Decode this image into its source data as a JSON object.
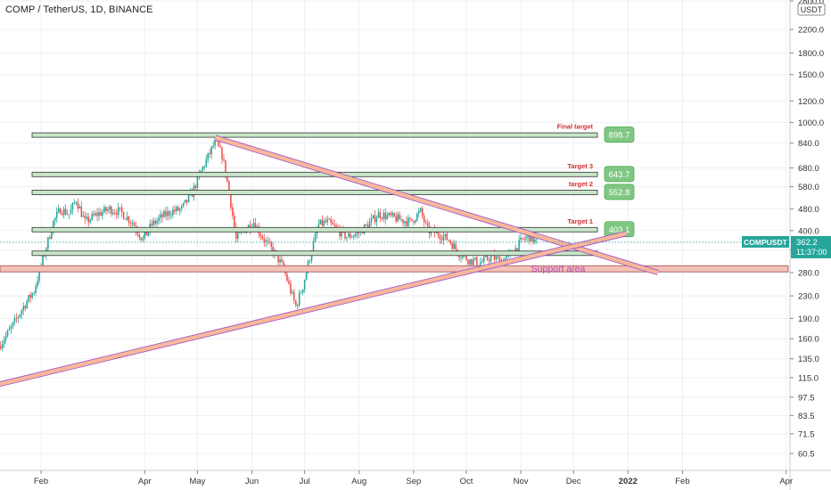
{
  "header": {
    "title": "COMP / TetherUS, 1D, BINANCE"
  },
  "currency_badge": "USDT",
  "price_tag": {
    "symbol": "COMPUSDT",
    "price": "362.2",
    "countdown": "11:37:00"
  },
  "colors": {
    "background": "#ffffff",
    "up_candle": "#26a69a",
    "down_candle": "#ef5350",
    "level_fill": "#c8e6c9",
    "level_border": "#333333",
    "label_green": "#81c784",
    "trend_fill": "#f7b89a",
    "trend_border": "#9c4dcc",
    "support_fill": "#f4c1b8",
    "support_text": "#b04ab0",
    "target_text": "#d32f2f",
    "price_tag": "#26a69a"
  },
  "chart_data": {
    "type": "candlestick",
    "title": "COMP / TetherUS, 1D, BINANCE",
    "y_scale": "log",
    "ylim": [
      52,
      2900
    ],
    "y_ticks": [
      "2800.0",
      "2200.0",
      "1800.0",
      "1500.0",
      "1200.0",
      "1000.0",
      "840.0",
      "680.0",
      "580.0",
      "480.0",
      "400.0",
      "340.0",
      "280.0",
      "230.0",
      "190.0",
      "160.0",
      "135.0",
      "115.0",
      "97.5",
      "83.5",
      "71.5",
      "60.5"
    ],
    "x_ticks": [
      "Feb",
      "Apr",
      "May",
      "Jun",
      "Jul",
      "Aug",
      "Sep",
      "Oct",
      "Nov",
      "Dec",
      "2022",
      "Feb",
      "Apr"
    ],
    "grid": true,
    "close_path": [
      {
        "date": "2021-01-08",
        "close": 150
      },
      {
        "date": "2021-01-15",
        "close": 175
      },
      {
        "date": "2021-01-22",
        "close": 210
      },
      {
        "date": "2021-01-28",
        "close": 240
      },
      {
        "date": "2021-02-03",
        "close": 330
      },
      {
        "date": "2021-02-08",
        "close": 430
      },
      {
        "date": "2021-02-12",
        "close": 480
      },
      {
        "date": "2021-02-17",
        "close": 460
      },
      {
        "date": "2021-02-21",
        "close": 520
      },
      {
        "date": "2021-02-26",
        "close": 430
      },
      {
        "date": "2021-03-05",
        "close": 460
      },
      {
        "date": "2021-03-12",
        "close": 480
      },
      {
        "date": "2021-03-18",
        "close": 470
      },
      {
        "date": "2021-03-25",
        "close": 430
      },
      {
        "date": "2021-03-31",
        "close": 370
      },
      {
        "date": "2021-04-05",
        "close": 420
      },
      {
        "date": "2021-04-11",
        "close": 450
      },
      {
        "date": "2021-04-16",
        "close": 470
      },
      {
        "date": "2021-04-22",
        "close": 480
      },
      {
        "date": "2021-04-28",
        "close": 550
      },
      {
        "date": "2021-05-03",
        "close": 660
      },
      {
        "date": "2021-05-08",
        "close": 770
      },
      {
        "date": "2021-05-11",
        "close": 850
      },
      {
        "date": "2021-05-15",
        "close": 760
      },
      {
        "date": "2021-05-19",
        "close": 560
      },
      {
        "date": "2021-05-23",
        "close": 370
      },
      {
        "date": "2021-05-27",
        "close": 400
      },
      {
        "date": "2021-06-02",
        "close": 430
      },
      {
        "date": "2021-06-08",
        "close": 370
      },
      {
        "date": "2021-06-14",
        "close": 330
      },
      {
        "date": "2021-06-19",
        "close": 290
      },
      {
        "date": "2021-06-23",
        "close": 240
      },
      {
        "date": "2021-06-26",
        "close": 210
      },
      {
        "date": "2021-06-30",
        "close": 250
      },
      {
        "date": "2021-07-04",
        "close": 320
      },
      {
        "date": "2021-07-09",
        "close": 420
      },
      {
        "date": "2021-07-14",
        "close": 430
      },
      {
        "date": "2021-07-20",
        "close": 400
      },
      {
        "date": "2021-07-25",
        "close": 380
      },
      {
        "date": "2021-07-31",
        "close": 390
      },
      {
        "date": "2021-08-06",
        "close": 420
      },
      {
        "date": "2021-08-12",
        "close": 460
      },
      {
        "date": "2021-08-18",
        "close": 450
      },
      {
        "date": "2021-08-24",
        "close": 440
      },
      {
        "date": "2021-08-30",
        "close": 430
      },
      {
        "date": "2021-09-05",
        "close": 470
      },
      {
        "date": "2021-09-09",
        "close": 400
      },
      {
        "date": "2021-09-15",
        "close": 390
      },
      {
        "date": "2021-09-21",
        "close": 370
      },
      {
        "date": "2021-09-27",
        "close": 330
      },
      {
        "date": "2021-10-03",
        "close": 310
      },
      {
        "date": "2021-10-09",
        "close": 305
      },
      {
        "date": "2021-10-15",
        "close": 320
      },
      {
        "date": "2021-10-21",
        "close": 310
      },
      {
        "date": "2021-10-27",
        "close": 330
      },
      {
        "date": "2021-11-02",
        "close": 370
      },
      {
        "date": "2021-11-06",
        "close": 380
      },
      {
        "date": "2021-11-10",
        "close": 362
      }
    ],
    "horizontal_levels": [
      {
        "label": "Final target",
        "value": 898.7,
        "value_label": "898.7"
      },
      {
        "label": "Target 3",
        "value": 643.7,
        "value_label": "643.7"
      },
      {
        "label": "target 2",
        "value": 552.8,
        "value_label": "552.8"
      },
      {
        "label": "Target 1",
        "value": 403.1,
        "value_label": "403.1"
      },
      {
        "label": "",
        "value": 330
      }
    ],
    "zones": [
      {
        "label": "Support area",
        "from": 282,
        "to": 297
      }
    ],
    "trend_lines": [
      {
        "from": {
          "date": "2021-05-11",
          "price": 880
        },
        "to": {
          "date": "2022-01-18",
          "price": 280
        }
      },
      {
        "from": {
          "date": "2021-01-01",
          "price": 106
        },
        "to": {
          "date": "2021-12-31",
          "price": 390
        }
      }
    ],
    "last_price": 362.2
  }
}
